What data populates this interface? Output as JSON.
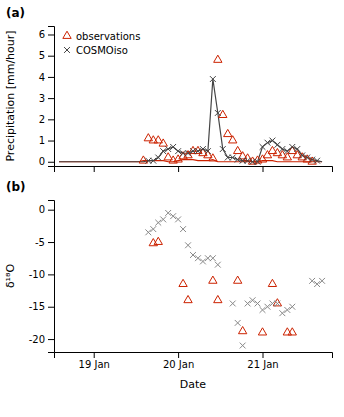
{
  "chart_data": [
    {
      "type": "line",
      "title": "(a)",
      "ylabel": "Precipitation [mm/hour]",
      "xlim": [
        -1,
        55
      ],
      "ylim": [
        -0.2,
        6.4
      ],
      "xticks": [
        7,
        24,
        41
      ],
      "yticks": [
        0,
        1,
        2,
        3,
        4,
        5,
        6
      ],
      "tick_labels": "y",
      "legend": "upper left",
      "series": [
        {
          "type": "line",
          "color": "#cc2200",
          "line_style": "solid",
          "x": [
            0,
            1,
            2,
            3,
            4,
            5,
            6,
            7,
            8,
            9,
            10,
            11,
            12,
            13,
            14,
            15,
            16,
            17,
            18,
            19,
            20,
            21,
            22,
            23,
            24,
            25,
            26,
            27,
            28,
            29,
            30,
            31,
            32,
            33,
            34,
            35,
            36,
            37,
            38,
            39,
            40,
            41,
            42,
            43,
            44,
            45,
            46,
            47,
            48,
            49,
            50,
            51,
            52,
            53
          ],
          "values": [
            0.0,
            0.0,
            0.0,
            0.0,
            0.0,
            0.0,
            0.0,
            0.0,
            0.0,
            0.0,
            0.0,
            0.0,
            0.0,
            0.0,
            0.0,
            0.0,
            0.0,
            0.05,
            0.05,
            0.05,
            0.05,
            0.05,
            0.0,
            0.0,
            0.05,
            0.1,
            0.1,
            0.1,
            0.05,
            0.05,
            0.05,
            0.1,
            0.0,
            0.0,
            0.0,
            0.0,
            0.0,
            0.0,
            0.0,
            0.0,
            0.0,
            0.05,
            0.05,
            0.05,
            0.0,
            0.0,
            0.0,
            0.0,
            0.0,
            0.0,
            0.0,
            0.0,
            0.0,
            0.0
          ]
        },
        {
          "type": "line",
          "color": "#444444",
          "line_style": "solid",
          "x": [
            0,
            1,
            2,
            3,
            4,
            5,
            6,
            7,
            8,
            9,
            10,
            11,
            12,
            13,
            14,
            15,
            16,
            17,
            18,
            19,
            20,
            21,
            22,
            23,
            24,
            25,
            26,
            27,
            28,
            29,
            30,
            31,
            32,
            33,
            34,
            35,
            36,
            37,
            38,
            39,
            40,
            41,
            42,
            43,
            44,
            45,
            46,
            47,
            48,
            49,
            50,
            51,
            52,
            53
          ],
          "values": [
            0.0,
            0.0,
            0.0,
            0.0,
            0.0,
            0.0,
            0.0,
            0.0,
            0.0,
            0.0,
            0.0,
            0.0,
            0.0,
            0.0,
            0.0,
            0.0,
            0.0,
            0.0,
            0.05,
            0.05,
            0.2,
            0.5,
            0.6,
            0.7,
            0.5,
            0.4,
            0.4,
            0.5,
            0.5,
            0.6,
            0.5,
            3.9,
            2.3,
            0.6,
            0.2,
            0.2,
            0.1,
            0.05,
            0.05,
            0.0,
            0.0,
            0.7,
            0.9,
            1.0,
            0.8,
            0.6,
            0.5,
            0.7,
            0.6,
            0.3,
            0.2,
            0.1,
            0.05,
            0.0
          ]
        },
        {
          "name": "observations",
          "type": "scatter",
          "color": "#cc2200",
          "marker": "triangle",
          "x": [
            17,
            18,
            19,
            20,
            21,
            22,
            23,
            24,
            25,
            26,
            27,
            28,
            29,
            30,
            31,
            32,
            33,
            34,
            35,
            36,
            37,
            38,
            39,
            40,
            41,
            42,
            43,
            44,
            45,
            46,
            47,
            48,
            49,
            50,
            51
          ],
          "values": [
            0.05,
            1.1,
            1.0,
            1.0,
            0.85,
            0.2,
            0.05,
            0.1,
            0.25,
            0.3,
            0.5,
            0.5,
            0.4,
            0.3,
            0.15,
            4.8,
            2.2,
            1.3,
            1.0,
            0.5,
            0.25,
            0.15,
            0.0,
            0.05,
            0.1,
            0.3,
            0.5,
            0.4,
            0.3,
            0.2,
            0.5,
            0.3,
            0.2,
            0.1,
            0.0
          ]
        },
        {
          "name": "COSMOiso",
          "type": "scatter",
          "color": "#444444",
          "marker": "x",
          "x": [
            18,
            19,
            20,
            21,
            22,
            23,
            24,
            25,
            26,
            27,
            28,
            29,
            30,
            31,
            32,
            33,
            34,
            35,
            36,
            37,
            38,
            39,
            40,
            41,
            42,
            43,
            44,
            45,
            46,
            47,
            48,
            49,
            50,
            51,
            52
          ],
          "values": [
            0.05,
            0.05,
            0.2,
            0.5,
            0.6,
            0.7,
            0.5,
            0.4,
            0.4,
            0.5,
            0.5,
            0.6,
            0.5,
            3.9,
            2.3,
            0.6,
            0.2,
            0.2,
            0.1,
            0.05,
            0.05,
            0.0,
            0.0,
            0.7,
            0.9,
            1.0,
            0.8,
            0.6,
            0.5,
            0.7,
            0.6,
            0.3,
            0.2,
            0.1,
            0.05
          ]
        }
      ]
    },
    {
      "type": "scatter",
      "title": "(b)",
      "xlabel": "Date",
      "ylabel": "δ¹⁸O",
      "xlim": [
        -1,
        55
      ],
      "ylim": [
        -22,
        1.5
      ],
      "xticks": [
        {
          "value": 7,
          "label": "19 Jan"
        },
        {
          "value": 24,
          "label": "20 Jan"
        },
        {
          "value": 41,
          "label": "21 Jan"
        }
      ],
      "yticks": [
        0,
        -5,
        -10,
        -15,
        -20
      ],
      "series": [
        {
          "type": "scatter",
          "color": "#cc2200",
          "marker": "triangle",
          "x": [
            19,
            20,
            25,
            26,
            31,
            32,
            36,
            37,
            41,
            43,
            44,
            46,
            47
          ],
          "values": [
            -5.2,
            -5.0,
            -11.5,
            -14.0,
            -11.0,
            -14.0,
            -11.0,
            -18.8,
            -19.0,
            -11.5,
            -14.5,
            -19.0,
            -19.0
          ]
        },
        {
          "type": "scatter",
          "color": "#888888",
          "marker": "x",
          "x": [
            18,
            19,
            20,
            21,
            22,
            23,
            24,
            25,
            26,
            27,
            28,
            29,
            30,
            31,
            32,
            35,
            36,
            37,
            38,
            39,
            40,
            41,
            42,
            43,
            44,
            45,
            46,
            47,
            51,
            52,
            53
          ],
          "values": [
            -3.5,
            -3.0,
            -2.0,
            -1.5,
            -0.5,
            -1.0,
            -1.5,
            -3.0,
            -5.5,
            -7.0,
            -7.5,
            -8.0,
            -7.5,
            -7.5,
            -8.5,
            -14.5,
            -17.5,
            -21.0,
            -14.5,
            -14.0,
            -14.5,
            -15.5,
            -15.0,
            -14.5,
            -14.5,
            -16.0,
            -15.5,
            -15.0,
            -11.0,
            -11.5,
            -11.0
          ]
        }
      ]
    }
  ]
}
